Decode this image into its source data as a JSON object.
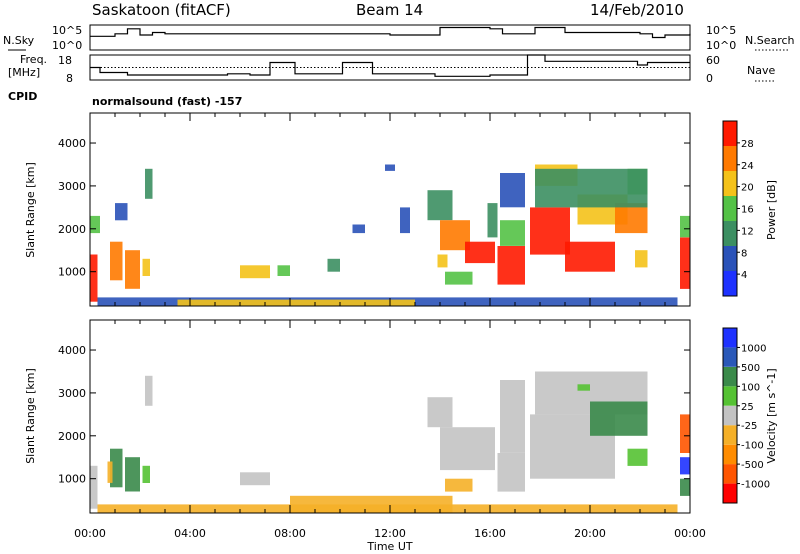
{
  "header": {
    "station": "Saskatoon (fitACF)",
    "beam": "Beam 14",
    "date": "14/Feb/2010"
  },
  "colors": {
    "power": [
      "#1e32ff",
      "#2a52b8",
      "#3c8f62",
      "#54c246",
      "#f4c21a",
      "#ff7a00",
      "#ff1a00"
    ],
    "velocity": [
      "#ff0000",
      "#ff5500",
      "#ff8c00",
      "#f5b028",
      "#c3c3c3",
      "#55c233",
      "#3a8a4a",
      "#2a58b8",
      "#1e32ff"
    ],
    "ground": "#c3c3c3"
  },
  "chart_data": [
    {
      "type": "line",
      "name": "noise-panel",
      "left_labels": {
        "series": "N.Sky",
        "ticks": [
          "10^5",
          "10^0"
        ]
      },
      "right_labels": {
        "series": "N.Search",
        "ticks": [
          "10^5",
          "10^0"
        ]
      },
      "x": [
        0,
        1,
        1.5,
        2,
        2.5,
        3,
        4,
        6,
        8,
        10,
        12,
        13.5,
        14,
        15,
        16,
        16.5,
        17.5,
        17.8,
        19,
        20,
        21,
        22,
        22.5,
        23,
        24
      ],
      "n_sky_level": [
        0.45,
        0.35,
        0.15,
        0.4,
        0.3,
        0.35,
        0.35,
        0.35,
        0.35,
        0.35,
        0.4,
        0.4,
        0.1,
        0.1,
        0.15,
        0.35,
        0.35,
        0.1,
        0.3,
        0.3,
        0.3,
        0.35,
        0.5,
        0.4,
        0.35
      ]
    },
    {
      "type": "line",
      "name": "frequency-panel",
      "left_labels": {
        "title": "Freq.",
        "unit": "[MHz]",
        "ticks": [
          "18",
          "8"
        ]
      },
      "right_labels": {
        "title": "Nave",
        "ticks": [
          "60",
          "0"
        ]
      },
      "cpid_label": "CPID",
      "cpid_text": "normalsound (fast) -157",
      "freq_steps": [
        {
          "x0": 0,
          "x1": 0.4,
          "f": 13
        },
        {
          "x0": 0.4,
          "x1": 1.5,
          "f": 11
        },
        {
          "x0": 1.5,
          "x1": 5.5,
          "f": 10
        },
        {
          "x0": 5.5,
          "x1": 6.4,
          "f": 10.5
        },
        {
          "x0": 6.4,
          "x1": 7.2,
          "f": 10
        },
        {
          "x0": 7.2,
          "x1": 8.2,
          "f": 15
        },
        {
          "x0": 8.2,
          "x1": 10.1,
          "f": 10.5
        },
        {
          "x0": 10.1,
          "x1": 11.3,
          "f": 15
        },
        {
          "x0": 11.3,
          "x1": 13.8,
          "f": 10.5
        },
        {
          "x0": 13.8,
          "x1": 16,
          "f": 9.5
        },
        {
          "x0": 16,
          "x1": 17.5,
          "f": 10
        },
        {
          "x0": 17.5,
          "x1": 18.2,
          "f": 18
        },
        {
          "x0": 18.2,
          "x1": 21.9,
          "f": 15.5
        },
        {
          "x0": 21.9,
          "x1": 22.3,
          "f": 14
        },
        {
          "x0": 22.3,
          "x1": 24,
          "f": 15
        }
      ],
      "nave_level": 30
    },
    {
      "type": "heatmap",
      "name": "power-panel",
      "ylabel": "Slant Range [km]",
      "yticks": [
        "1000",
        "2000",
        "3000",
        "4000"
      ],
      "ylim": [
        200,
        4700
      ],
      "xlim": [
        0,
        24
      ],
      "colorbar": {
        "label": "Power [dB]",
        "ticks": [
          "4",
          "8",
          "12",
          "16",
          "20",
          "24",
          "28"
        ]
      },
      "patches": [
        {
          "x0": 0.0,
          "x1": 0.3,
          "r0": 300,
          "r1": 1400,
          "c": 6
        },
        {
          "x0": 0.0,
          "x1": 0.4,
          "r0": 1900,
          "r1": 2300,
          "c": 3
        },
        {
          "x0": 0.8,
          "x1": 1.3,
          "r0": 800,
          "r1": 1700,
          "c": 5
        },
        {
          "x0": 1.4,
          "x1": 2.0,
          "r0": 600,
          "r1": 1500,
          "c": 5
        },
        {
          "x0": 2.1,
          "x1": 2.4,
          "r0": 900,
          "r1": 1300,
          "c": 4
        },
        {
          "x0": 2.2,
          "x1": 2.5,
          "r0": 2700,
          "r1": 3400,
          "c": 2
        },
        {
          "x0": 1.0,
          "x1": 1.5,
          "r0": 2200,
          "r1": 2600,
          "c": 1
        },
        {
          "x0": 6.0,
          "x1": 7.2,
          "r0": 850,
          "r1": 1150,
          "c": 4
        },
        {
          "x0": 7.5,
          "x1": 8.0,
          "r0": 900,
          "r1": 1150,
          "c": 3
        },
        {
          "x0": 9.5,
          "x1": 10.0,
          "r0": 1000,
          "r1": 1300,
          "c": 2
        },
        {
          "x0": 10.5,
          "x1": 11.0,
          "r0": 1900,
          "r1": 2100,
          "c": 1
        },
        {
          "x0": 11.8,
          "x1": 12.2,
          "r0": 3350,
          "r1": 3500,
          "c": 1
        },
        {
          "x0": 12.4,
          "x1": 12.8,
          "r0": 1900,
          "r1": 2500,
          "c": 1
        },
        {
          "x0": 13.5,
          "x1": 14.5,
          "r0": 2200,
          "r1": 2900,
          "c": 2
        },
        {
          "x0": 14.0,
          "x1": 15.2,
          "r0": 1500,
          "r1": 2200,
          "c": 5
        },
        {
          "x0": 15.0,
          "x1": 16.2,
          "r0": 1200,
          "r1": 1700,
          "c": 6
        },
        {
          "x0": 13.9,
          "x1": 14.3,
          "r0": 1100,
          "r1": 1400,
          "c": 4
        },
        {
          "x0": 14.2,
          "x1": 15.3,
          "r0": 700,
          "r1": 1000,
          "c": 3
        },
        {
          "x0": 15.9,
          "x1": 16.3,
          "r0": 1800,
          "r1": 2600,
          "c": 2
        },
        {
          "x0": 16.3,
          "x1": 17.4,
          "r0": 700,
          "r1": 1600,
          "c": 6
        },
        {
          "x0": 16.4,
          "x1": 17.4,
          "r0": 1600,
          "r1": 2200,
          "c": 3
        },
        {
          "x0": 16.4,
          "x1": 17.4,
          "r0": 2500,
          "r1": 3300,
          "c": 1
        },
        {
          "x0": 17.6,
          "x1": 19.2,
          "r0": 1400,
          "r1": 2500,
          "c": 6
        },
        {
          "x0": 19.0,
          "x1": 21.0,
          "r0": 1000,
          "r1": 1700,
          "c": 6
        },
        {
          "x0": 17.8,
          "x1": 19.5,
          "r0": 3000,
          "r1": 3500,
          "c": 4
        },
        {
          "x0": 19.5,
          "x1": 21.5,
          "r0": 2100,
          "r1": 2800,
          "c": 4
        },
        {
          "x0": 21.0,
          "x1": 22.3,
          "r0": 1900,
          "r1": 2600,
          "c": 5
        },
        {
          "x0": 21.5,
          "x1": 22.3,
          "r0": 2800,
          "r1": 3400,
          "c": 3
        },
        {
          "x0": 17.8,
          "x1": 22.3,
          "r0": 2500,
          "r1": 3400,
          "c": 2
        },
        {
          "x0": 21.8,
          "x1": 22.3,
          "r0": 1100,
          "r1": 1500,
          "c": 4
        },
        {
          "x0": 23.6,
          "x1": 24.0,
          "r0": 600,
          "r1": 1800,
          "c": 6
        },
        {
          "x0": 23.6,
          "x1": 24.0,
          "r0": 1800,
          "r1": 2300,
          "c": 3
        },
        {
          "x0": 0.3,
          "x1": 23.5,
          "r0": 200,
          "r1": 400,
          "c": 1
        },
        {
          "x0": 3.5,
          "x1": 13.0,
          "r0": 200,
          "r1": 350,
          "c": 4
        }
      ]
    },
    {
      "type": "heatmap",
      "name": "velocity-panel",
      "ylabel": "Slant Range [km]",
      "yticks": [
        "1000",
        "2000",
        "3000",
        "4000"
      ],
      "ylim": [
        200,
        4700
      ],
      "xlim": [
        0,
        24
      ],
      "xlabel": "Time UT",
      "xticks": [
        "00:00",
        "04:00",
        "08:00",
        "12:00",
        "16:00",
        "20:00",
        "00:00"
      ],
      "colorbar": {
        "label": "Velocity [m s^-1]",
        "ticks": [
          "-1000",
          "-500",
          "-100",
          "-25",
          "25",
          "100",
          "500",
          "1000"
        ]
      },
      "patches": [
        {
          "x0": 0.0,
          "x1": 0.3,
          "r0": 300,
          "r1": 1300,
          "c": 4
        },
        {
          "x0": 0.8,
          "x1": 1.3,
          "r0": 800,
          "r1": 1700,
          "c": 6
        },
        {
          "x0": 0.7,
          "x1": 0.9,
          "r0": 900,
          "r1": 1400,
          "c": 3
        },
        {
          "x0": 1.4,
          "x1": 2.0,
          "r0": 700,
          "r1": 1500,
          "c": 6
        },
        {
          "x0": 2.1,
          "x1": 2.4,
          "r0": 900,
          "r1": 1300,
          "c": 5
        },
        {
          "x0": 2.2,
          "x1": 2.5,
          "r0": 2700,
          "r1": 3400,
          "c": 4
        },
        {
          "x0": 6.0,
          "x1": 7.2,
          "r0": 850,
          "r1": 1150,
          "c": 4
        },
        {
          "x0": 13.5,
          "x1": 14.5,
          "r0": 2200,
          "r1": 2900,
          "c": 4
        },
        {
          "x0": 14.0,
          "x1": 16.2,
          "r0": 1200,
          "r1": 2200,
          "c": 4
        },
        {
          "x0": 14.2,
          "x1": 15.3,
          "r0": 700,
          "r1": 1000,
          "c": 3
        },
        {
          "x0": 16.3,
          "x1": 17.4,
          "r0": 700,
          "r1": 1600,
          "c": 4
        },
        {
          "x0": 16.4,
          "x1": 17.4,
          "r0": 1600,
          "r1": 3300,
          "c": 4
        },
        {
          "x0": 17.6,
          "x1": 21.0,
          "r0": 1000,
          "r1": 2500,
          "c": 4
        },
        {
          "x0": 17.8,
          "x1": 22.3,
          "r0": 2500,
          "r1": 3500,
          "c": 4
        },
        {
          "x0": 20.0,
          "x1": 22.3,
          "r0": 2000,
          "r1": 2800,
          "c": 6
        },
        {
          "x0": 19.5,
          "x1": 20.0,
          "r0": 3050,
          "r1": 3200,
          "c": 5
        },
        {
          "x0": 21.5,
          "x1": 22.3,
          "r0": 1300,
          "r1": 1700,
          "c": 5
        },
        {
          "x0": 23.6,
          "x1": 24.0,
          "r0": 1100,
          "r1": 1500,
          "c": 8
        },
        {
          "x0": 23.6,
          "x1": 24.0,
          "r0": 1600,
          "r1": 2500,
          "c": 1
        },
        {
          "x0": 23.6,
          "x1": 24.0,
          "r0": 600,
          "r1": 1000,
          "c": 6
        },
        {
          "x0": 0.3,
          "x1": 23.5,
          "r0": 200,
          "r1": 400,
          "c": 3
        },
        {
          "x0": 8.0,
          "x1": 14.5,
          "r0": 200,
          "r1": 600,
          "c": 3
        }
      ]
    }
  ]
}
